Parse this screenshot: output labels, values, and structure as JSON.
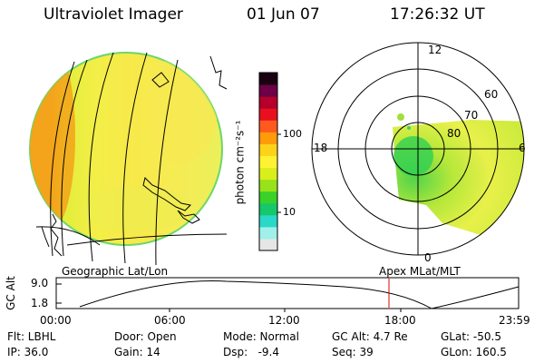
{
  "header": {
    "instrument": "Ultraviolet Imager",
    "date": "01 Jun 07",
    "time": "17:26:32 UT"
  },
  "colorbar": {
    "unit_label": "photon cm⁻²s⁻¹",
    "tick_100": "100",
    "tick_10": "10",
    "colors": [
      "#e6e6e6",
      "#9ff0e8",
      "#2ad8c8",
      "#16c86a",
      "#39d12a",
      "#98e219",
      "#d9ef1c",
      "#fff233",
      "#ffd21a",
      "#ff9a0a",
      "#ff5a1e",
      "#e8101e",
      "#b4002a",
      "#6e0046",
      "#1a0010"
    ]
  },
  "panels": {
    "left_label": "Geographic Lat/Lon",
    "right_label": "Apex MLat/MLT"
  },
  "polar": {
    "mlt_12": "12",
    "mlt_18": "18",
    "mlt_6": "6",
    "mlt_0": "0",
    "lat_60": "60",
    "lat_70": "70",
    "lat_80": "80"
  },
  "altitude_plot": {
    "axis_label": "GC Alt",
    "y_top": "9.0",
    "y_bottom": "1.8",
    "x_ticks": [
      "00:00",
      "06:00",
      "12:00",
      "18:00",
      "23:59"
    ],
    "marker_color": "#dd0000"
  },
  "info": {
    "row1": [
      "Flt: LBHL",
      "Door: Open",
      "Mode: Normal",
      "GC Alt: 4.7 Re",
      "GLat: -50.5"
    ],
    "row2": [
      "IP: 36.0",
      "Gain: 14",
      "Dsp:   -9.4",
      "Seq: 39",
      "GLon: 160.5"
    ]
  }
}
